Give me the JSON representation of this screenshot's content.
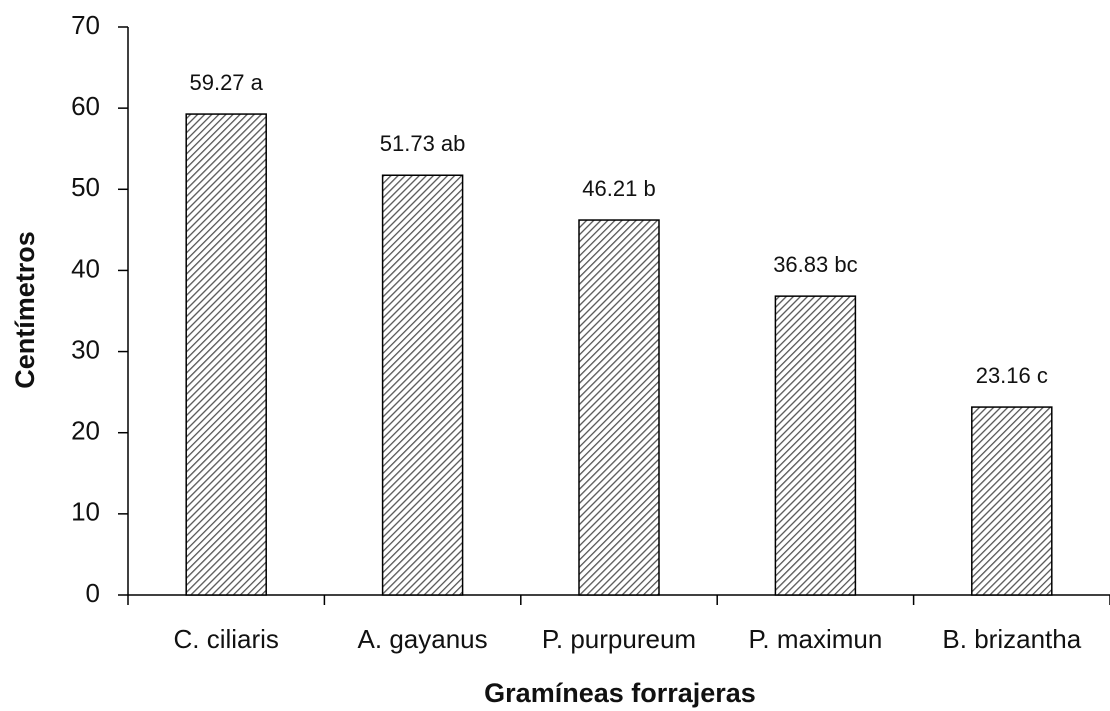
{
  "chart_data": {
    "type": "bar",
    "categories": [
      "C. ciliaris",
      "A. gayanus",
      "P. purpureum",
      "P. maximun",
      "B. brizantha"
    ],
    "values": [
      59.27,
      51.73,
      46.21,
      36.83,
      23.16
    ],
    "value_labels": [
      "59.27 a",
      "51.73 ab",
      "46.21 b",
      "36.83 bc",
      "23.16 c"
    ],
    "color": "#555555",
    "xlabel": "Gramíneas forrajeras",
    "ylabel": "Centímetros",
    "ylim": [
      0,
      70
    ],
    "yticks": [
      0,
      10,
      20,
      30,
      40,
      50,
      60,
      70
    ],
    "grid": false
  }
}
